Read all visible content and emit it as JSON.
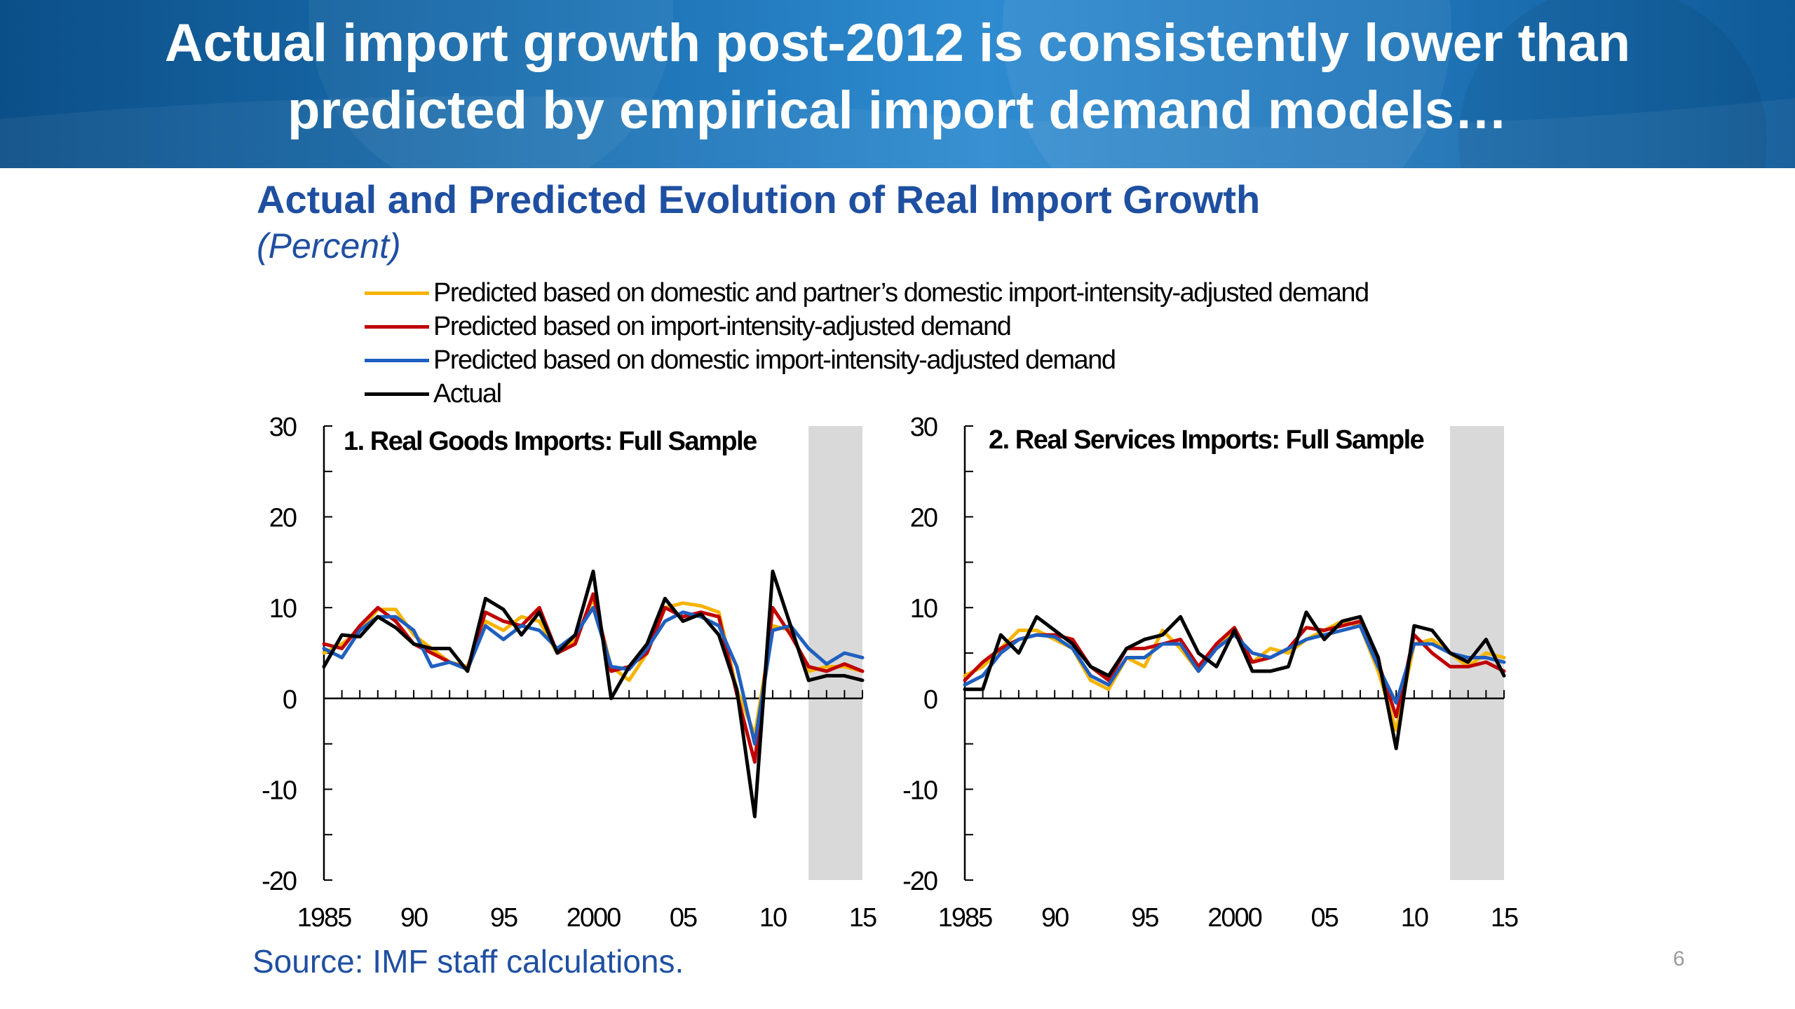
{
  "slide": {
    "title_line1": "Actual import growth post-2012 is consistently lower than",
    "title_line2": "predicted by empirical import demand models…",
    "page_number": "6"
  },
  "figure": {
    "title": "Actual and Predicted Evolution of Real Import Growth",
    "subtitle": "(Percent)",
    "source": "Source: IMF staff calculations."
  },
  "legend": [
    {
      "label": "Predicted based on domestic and partner’s domestic import-intensity-adjusted demand",
      "color": "#f5b400"
    },
    {
      "label": "Predicted based on import-intensity-adjusted demand",
      "color": "#c00000"
    },
    {
      "label": "Predicted based on domestic import-intensity-adjusted demand",
      "color": "#1f5fbf"
    },
    {
      "label": "Actual",
      "color": "#000000"
    }
  ],
  "chart_data": [
    {
      "type": "line",
      "title": "1. Real Goods Imports: Full Sample",
      "x": [
        1985,
        1986,
        1987,
        1988,
        1989,
        1990,
        1991,
        1992,
        1993,
        1994,
        1995,
        1996,
        1997,
        1998,
        1999,
        2000,
        2001,
        2002,
        2003,
        2004,
        2005,
        2006,
        2007,
        2008,
        2009,
        2010,
        2011,
        2012,
        2013,
        2014,
        2015
      ],
      "ylim": [
        -20,
        30
      ],
      "yticks": [
        -20,
        -10,
        0,
        10,
        20,
        30
      ],
      "xtick_labels": [
        {
          "x": 1985,
          "label": "1985"
        },
        {
          "x": 1990,
          "label": "90"
        },
        {
          "x": 1995,
          "label": "95"
        },
        {
          "x": 2000,
          "label": "2000"
        },
        {
          "x": 2005,
          "label": "05"
        },
        {
          "x": 2010,
          "label": "10"
        },
        {
          "x": 2015,
          "label": "15"
        }
      ],
      "shaded_region": [
        2012,
        2015
      ],
      "series": [
        {
          "name": "Predicted based on domestic and partner’s domestic import-intensity-adjusted demand",
          "color": "#f5b400",
          "values": [
            5.0,
            6.0,
            7.5,
            9.8,
            9.8,
            7.0,
            5.5,
            4.0,
            3.5,
            8.5,
            7.5,
            9.0,
            8.5,
            5.0,
            6.5,
            11.0,
            3.5,
            2.0,
            5.0,
            10.0,
            10.5,
            10.2,
            9.5,
            1.0,
            -4.0,
            8.0,
            7.5,
            3.0,
            3.5,
            3.5,
            3.0
          ]
        },
        {
          "name": "Predicted based on import-intensity-adjusted demand",
          "color": "#c00000",
          "values": [
            6.0,
            5.5,
            8.0,
            10.0,
            8.5,
            6.0,
            5.0,
            4.0,
            3.3,
            9.5,
            8.5,
            8.0,
            10.0,
            5.0,
            6.0,
            11.5,
            3.0,
            3.5,
            5.0,
            10.0,
            9.0,
            9.5,
            9.0,
            0.5,
            -7.0,
            10.0,
            7.0,
            3.5,
            3.0,
            3.8,
            3.0
          ]
        },
        {
          "name": "Predicted based on domestic import-intensity-adjusted demand",
          "color": "#1f5fbf",
          "values": [
            5.5,
            4.5,
            7.5,
            9.0,
            9.0,
            7.5,
            3.5,
            4.0,
            3.2,
            8.0,
            6.5,
            8.0,
            7.5,
            5.5,
            7.0,
            10.0,
            3.5,
            3.2,
            5.5,
            8.5,
            9.5,
            9.0,
            8.0,
            3.5,
            -5.0,
            7.5,
            8.0,
            5.5,
            3.8,
            5.0,
            4.5
          ]
        },
        {
          "name": "Actual",
          "color": "#000000",
          "values": [
            3.5,
            7.0,
            6.8,
            9.0,
            7.8,
            6.0,
            5.5,
            5.5,
            3.0,
            11.0,
            9.8,
            7.0,
            9.5,
            5.0,
            7.0,
            14.0,
            0.0,
            3.5,
            6.0,
            11.0,
            8.5,
            9.3,
            7.0,
            1.0,
            -13.0,
            14.0,
            8.0,
            2.0,
            2.5,
            2.5,
            2.0
          ]
        }
      ]
    },
    {
      "type": "line",
      "title": "2. Real Services Imports: Full Sample",
      "x": [
        1985,
        1986,
        1987,
        1988,
        1989,
        1990,
        1991,
        1992,
        1993,
        1994,
        1995,
        1996,
        1997,
        1998,
        1999,
        2000,
        2001,
        2002,
        2003,
        2004,
        2005,
        2006,
        2007,
        2008,
        2009,
        2010,
        2011,
        2012,
        2013,
        2014,
        2015
      ],
      "ylim": [
        -20,
        30
      ],
      "yticks": [
        -20,
        -10,
        0,
        10,
        20,
        30
      ],
      "xtick_labels": [
        {
          "x": 1985,
          "label": "1985"
        },
        {
          "x": 1990,
          "label": "90"
        },
        {
          "x": 1995,
          "label": "95"
        },
        {
          "x": 2000,
          "label": "2000"
        },
        {
          "x": 2005,
          "label": "05"
        },
        {
          "x": 2010,
          "label": "10"
        },
        {
          "x": 2015,
          "label": "15"
        }
      ],
      "shaded_region": [
        2012,
        2015
      ],
      "series": [
        {
          "name": "Predicted based on domestic and partner’s domestic import-intensity-adjusted demand",
          "color": "#f5b400",
          "values": [
            2.5,
            3.5,
            5.5,
            7.5,
            7.5,
            6.5,
            5.5,
            2.0,
            1.0,
            4.5,
            3.5,
            7.5,
            5.5,
            3.0,
            5.5,
            7.5,
            4.0,
            5.5,
            5.0,
            6.5,
            7.5,
            8.5,
            8.0,
            3.0,
            -3.5,
            6.0,
            6.5,
            5.0,
            3.5,
            5.0,
            4.5
          ]
        },
        {
          "name": "Predicted based on import-intensity-adjusted demand",
          "color": "#c00000",
          "values": [
            2.0,
            4.0,
            5.5,
            6.5,
            7.0,
            7.0,
            6.5,
            3.5,
            2.0,
            5.5,
            5.5,
            6.0,
            6.5,
            3.5,
            6.0,
            7.8,
            4.0,
            4.5,
            5.5,
            7.8,
            7.5,
            8.0,
            8.5,
            4.0,
            -2.0,
            7.0,
            5.0,
            3.5,
            3.5,
            4.0,
            3.0
          ]
        },
        {
          "name": "Predicted based on domestic import-intensity-adjusted demand",
          "color": "#1f5fbf",
          "values": [
            1.5,
            2.5,
            5.0,
            6.5,
            7.0,
            6.8,
            5.5,
            2.5,
            1.5,
            4.5,
            4.5,
            6.0,
            6.0,
            3.0,
            5.5,
            7.0,
            5.0,
            4.5,
            5.5,
            6.5,
            7.0,
            7.5,
            8.0,
            3.5,
            -0.5,
            6.0,
            6.0,
            5.0,
            4.5,
            4.5,
            4.0
          ]
        },
        {
          "name": "Actual",
          "color": "#000000",
          "values": [
            1.0,
            1.0,
            7.0,
            5.0,
            9.0,
            7.5,
            6.0,
            3.5,
            2.5,
            5.5,
            6.5,
            7.0,
            9.0,
            5.0,
            3.5,
            7.5,
            3.0,
            3.0,
            3.5,
            9.5,
            6.5,
            8.5,
            9.0,
            4.5,
            -5.5,
            8.0,
            7.5,
            5.0,
            4.0,
            6.5,
            2.5
          ]
        }
      ]
    }
  ]
}
